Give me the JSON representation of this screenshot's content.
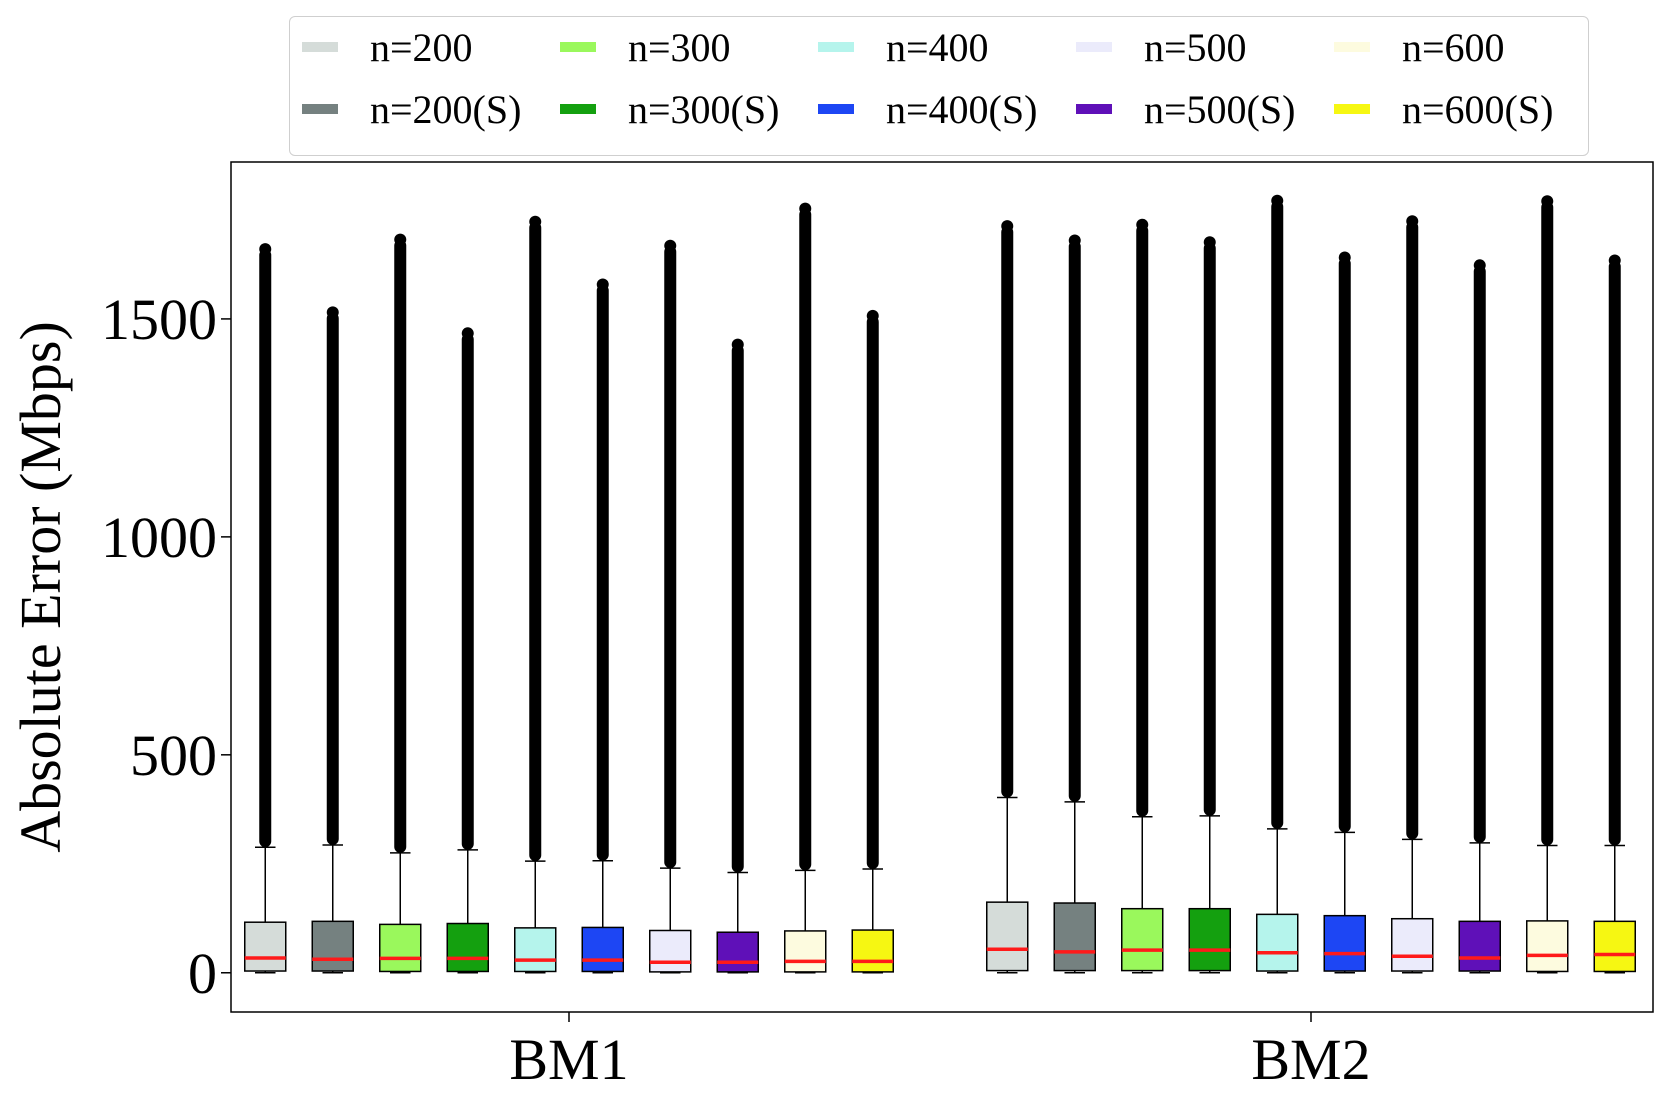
{
  "chart_data": {
    "type": "box",
    "ylabel": "Absolute Error (Mbps)",
    "xlabel": "",
    "categories": [
      "BM1",
      "BM2"
    ],
    "yticks": [
      0,
      500,
      1000,
      1500
    ],
    "ylim": [
      -90,
      1860
    ],
    "grid": false,
    "legend_position": "top",
    "series": [
      {
        "name": "n=200",
        "color": "#d5dcd9"
      },
      {
        "name": "n=200(S)",
        "color": "#758180"
      },
      {
        "name": "n=300",
        "color": "#9af85c"
      },
      {
        "name": "n=300(S)",
        "color": "#14a00f"
      },
      {
        "name": "n=400",
        "color": "#b5f4ec"
      },
      {
        "name": "n=400(S)",
        "color": "#1d46f4"
      },
      {
        "name": "n=500",
        "color": "#ebebfb"
      },
      {
        "name": "n=500(S)",
        "color": "#5f10b8"
      },
      {
        "name": "n=600",
        "color": "#fdfbdf"
      },
      {
        "name": "n=600(S)",
        "color": "#f6f712"
      }
    ],
    "boxes": {
      "BM1": [
        {
          "q1": 4,
          "median": 34,
          "q3": 116,
          "whisker_low": 0,
          "whisker_high": 288,
          "outlier_max": 1660
        },
        {
          "q1": 4,
          "median": 31,
          "q3": 118,
          "whisker_low": 0,
          "whisker_high": 293,
          "outlier_max": 1515
        },
        {
          "q1": 3,
          "median": 33,
          "q3": 111,
          "whisker_low": 0,
          "whisker_high": 275,
          "outlier_max": 1682
        },
        {
          "q1": 3,
          "median": 33,
          "q3": 113,
          "whisker_low": 0,
          "whisker_high": 282,
          "outlier_max": 1467
        },
        {
          "q1": 3,
          "median": 29,
          "q3": 103,
          "whisker_low": 0,
          "whisker_high": 256,
          "outlier_max": 1723
        },
        {
          "q1": 3,
          "median": 29,
          "q3": 104,
          "whisker_low": 0,
          "whisker_high": 257,
          "outlier_max": 1579
        },
        {
          "q1": 2,
          "median": 24,
          "q3": 97,
          "whisker_low": 0,
          "whisker_high": 240,
          "outlier_max": 1668
        },
        {
          "q1": 2,
          "median": 24,
          "q3": 93,
          "whisker_low": 0,
          "whisker_high": 230,
          "outlier_max": 1441
        },
        {
          "q1": 2,
          "median": 26,
          "q3": 96,
          "whisker_low": 0,
          "whisker_high": 235,
          "outlier_max": 1753
        },
        {
          "q1": 2,
          "median": 26,
          "q3": 98,
          "whisker_low": 0,
          "whisker_high": 238,
          "outlier_max": 1507
        }
      ],
      "BM2": [
        {
          "q1": 5,
          "median": 54,
          "q3": 162,
          "whisker_low": 0,
          "whisker_high": 402,
          "outlier_max": 1713
        },
        {
          "q1": 5,
          "median": 48,
          "q3": 160,
          "whisker_low": 0,
          "whisker_high": 392,
          "outlier_max": 1680
        },
        {
          "q1": 5,
          "median": 52,
          "q3": 147,
          "whisker_low": 0,
          "whisker_high": 358,
          "outlier_max": 1716
        },
        {
          "q1": 5,
          "median": 52,
          "q3": 147,
          "whisker_low": 0,
          "whisker_high": 360,
          "outlier_max": 1676
        },
        {
          "q1": 4,
          "median": 46,
          "q3": 134,
          "whisker_low": 0,
          "whisker_high": 330,
          "outlier_max": 1771
        },
        {
          "q1": 4,
          "median": 44,
          "q3": 131,
          "whisker_low": 0,
          "whisker_high": 322,
          "outlier_max": 1641
        },
        {
          "q1": 4,
          "median": 38,
          "q3": 124,
          "whisker_low": 0,
          "whisker_high": 306,
          "outlier_max": 1724
        },
        {
          "q1": 4,
          "median": 34,
          "q3": 118,
          "whisker_low": 0,
          "whisker_high": 298,
          "outlier_max": 1623
        },
        {
          "q1": 3,
          "median": 40,
          "q3": 119,
          "whisker_low": 0,
          "whisker_high": 292,
          "outlier_max": 1770
        },
        {
          "q1": 3,
          "median": 42,
          "q3": 118,
          "whisker_low": 0,
          "whisker_high": 292,
          "outlier_max": 1634
        }
      ]
    }
  }
}
